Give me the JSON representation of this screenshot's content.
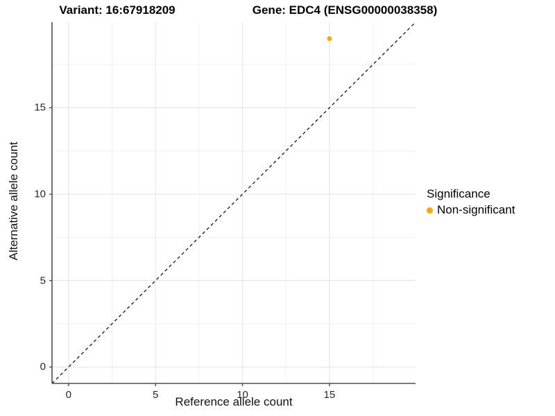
{
  "figure": {
    "title_left": "Variant: 16:67918209",
    "title_right": "Gene: EDC4 (ENSG00000038358)"
  },
  "chart_data": {
    "type": "scatter",
    "titles": [
      "Variant: 16:67918209",
      "Gene: EDC4 (ENSG00000038358)"
    ],
    "xlabel": "Reference allele count",
    "ylabel": "Alternative allele count",
    "xlim": [
      -0.95,
      19.95
    ],
    "ylim": [
      -0.95,
      19.95
    ],
    "xticks": [
      0,
      5,
      10,
      15
    ],
    "yticks": [
      0,
      5,
      10,
      15
    ],
    "xticks_minor": [
      2.5,
      7.5,
      12.5,
      17.5
    ],
    "yticks_minor": [
      2.5,
      7.5,
      12.5,
      17.5
    ],
    "grid": "major+minor",
    "series": [
      {
        "name": "Non-significant",
        "color": "#FFA500",
        "points": [
          {
            "x": 15,
            "y": 19
          }
        ]
      }
    ],
    "reference_line": {
      "type": "identity y=x",
      "style": "dashed",
      "color": "#111111"
    },
    "legend": {
      "title": "Significance",
      "position": "right",
      "items": [
        {
          "label": "Non-significant",
          "color": "#FFA500"
        }
      ]
    },
    "colors": {
      "background": "#ffffff",
      "grid_major": "#e3e3e3",
      "grid_minor": "#f0f0f0",
      "axis_line": "#4d4d4d",
      "tick_label": "#262626",
      "point": "#FFA500"
    }
  }
}
